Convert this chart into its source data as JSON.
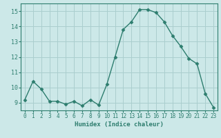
{
  "x": [
    0,
    1,
    2,
    3,
    4,
    5,
    6,
    7,
    8,
    9,
    10,
    11,
    12,
    13,
    14,
    15,
    16,
    17,
    18,
    19,
    20,
    21,
    22,
    23
  ],
  "y": [
    9.2,
    10.4,
    9.9,
    9.1,
    9.1,
    8.9,
    9.1,
    8.8,
    9.2,
    8.85,
    10.2,
    12.0,
    13.8,
    14.3,
    15.1,
    15.1,
    14.9,
    14.3,
    13.4,
    12.7,
    11.9,
    11.55,
    9.6,
    8.7
  ],
  "line_color": "#2d7d6e",
  "marker": "D",
  "marker_size": 2.5,
  "bg_color": "#cce8e8",
  "grid_color": "#aacece",
  "tick_color": "#2d7d6e",
  "label_color": "#2d7d6e",
  "xlabel": "Humidex (Indice chaleur)",
  "ylim": [
    8.5,
    15.5
  ],
  "xlim": [
    -0.5,
    23.5
  ],
  "yticks": [
    9,
    10,
    11,
    12,
    13,
    14,
    15
  ],
  "xtick_labels": [
    "0",
    "1",
    "2",
    "3",
    "4",
    "5",
    "6",
    "7",
    "8",
    "9",
    "10",
    "11",
    "12",
    "13",
    "14",
    "15",
    "16",
    "17",
    "18",
    "19",
    "20",
    "21",
    "22",
    "23"
  ]
}
